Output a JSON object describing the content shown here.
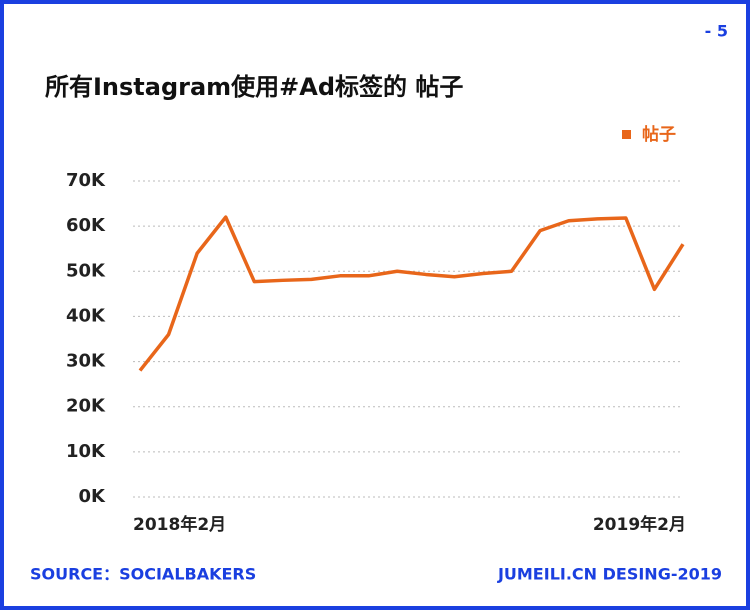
{
  "page_number": "- 5",
  "chart_data": {
    "type": "line",
    "title": "所有Instagram使用#Ad标签的 帖子",
    "categories": [
      "2018年2月",
      null,
      null,
      null,
      null,
      null,
      null,
      null,
      null,
      null,
      null,
      null,
      null,
      null,
      null,
      null,
      null,
      null,
      null,
      "2019年2月"
    ],
    "series": [
      {
        "name": "帖子",
        "color": "#e8661a",
        "values": [
          28000,
          36000,
          54000,
          62000,
          47700,
          48000,
          48200,
          49000,
          49000,
          50000,
          49300,
          48800,
          49500,
          50000,
          59000,
          61200,
          61600,
          61800,
          46000,
          56000
        ]
      }
    ],
    "ylim": [
      0,
      70000
    ],
    "yticks": [
      {
        "value": 0,
        "label": "0K"
      },
      {
        "value": 10000,
        "label": "10K"
      },
      {
        "value": 20000,
        "label": "20K"
      },
      {
        "value": 30000,
        "label": "30K"
      },
      {
        "value": 40000,
        "label": "40K"
      },
      {
        "value": 50000,
        "label": "50K"
      },
      {
        "value": 60000,
        "label": "60K"
      },
      {
        "value": 70000,
        "label": "70K"
      }
    ],
    "grid": true,
    "legend": "top-right"
  },
  "footer": {
    "source": "SOURCE：SOCIALBAKERS",
    "credit": "JUMEILI.CN DESING-2019"
  }
}
